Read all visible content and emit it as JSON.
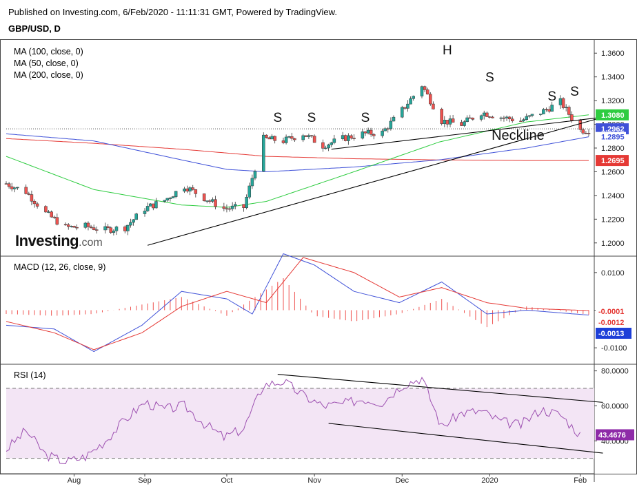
{
  "header": {
    "published": "Published on Investing.com, 6/Feb/2020 - 11:11:31 GMT, Powered by TradingView.",
    "symbol": "GBP/USD, D"
  },
  "watermark": {
    "brand": "Investing",
    "suffix": ".com"
  },
  "colors": {
    "up": "#26a69a",
    "down": "#ef5350",
    "ma100": "#3f51d8",
    "ma50": "#2ecc40",
    "ma200": "#e53935",
    "macd": "#3f51d8",
    "signal": "#e53935",
    "rsi": "#9c4fb0",
    "rsi_band": "#f3e5f5",
    "trendline": "#000000"
  },
  "chart_data": [
    {
      "type": "candlestick",
      "title": "GBP/USD, D",
      "x_axis": {
        "ticks": [
          "Aug",
          "Sep",
          "Oct",
          "Nov",
          "Dec",
          "2020",
          "Feb"
        ],
        "start": "2019-07-15",
        "end": "2020-02-06"
      },
      "y_axis": {
        "range": [
          1.19,
          1.37
        ],
        "ticks": [
          "1.2000",
          "1.2200",
          "1.2400",
          "1.2600",
          "1.2800",
          "1.3000",
          "1.3200",
          "1.3400",
          "1.3600"
        ]
      },
      "legend": [
        "MA (100, close, 0)",
        "MA (50, close, 0)",
        "MA (200, close, 0)"
      ],
      "price_badges": [
        {
          "value": "1.3080",
          "color": "#2ecc40",
          "y": 1.308
        },
        {
          "value": "1.2962",
          "color": "#3f51d8",
          "y": 1.2962
        },
        {
          "value": "1.2895",
          "color": "#3f51d8",
          "y": 1.2895,
          "style": "text"
        },
        {
          "value": "1.2695",
          "color": "#e53935",
          "y": 1.2695
        }
      ],
      "close_series": {
        "dates": [
          "2019-07-15",
          "2019-07-22",
          "2019-07-29",
          "2019-08-05",
          "2019-08-12",
          "2019-08-19",
          "2019-08-26",
          "2019-09-02",
          "2019-09-09",
          "2019-09-16",
          "2019-09-23",
          "2019-09-30",
          "2019-10-07",
          "2019-10-14",
          "2019-10-21",
          "2019-10-28",
          "2019-11-04",
          "2019-11-11",
          "2019-11-18",
          "2019-11-25",
          "2019-12-02",
          "2019-12-09",
          "2019-12-16",
          "2019-12-23",
          "2019-12-30",
          "2020-01-06",
          "2020-01-13",
          "2020-01-20",
          "2020-01-27",
          "2020-02-03"
        ],
        "values": [
          1.25,
          1.243,
          1.225,
          1.213,
          1.214,
          1.211,
          1.213,
          1.229,
          1.236,
          1.248,
          1.238,
          1.229,
          1.23,
          1.288,
          1.286,
          1.292,
          1.282,
          1.288,
          1.292,
          1.293,
          1.312,
          1.333,
          1.303,
          1.3,
          1.31,
          1.306,
          1.303,
          1.31,
          1.319,
          1.295
        ]
      },
      "ma100": {
        "dates": [
          "2019-07-15",
          "2019-08-15",
          "2019-09-15",
          "2019-10-01",
          "2019-10-15",
          "2019-11-15",
          "2019-12-15",
          "2020-01-15",
          "2020-02-06"
        ],
        "values": [
          1.292,
          1.286,
          1.27,
          1.262,
          1.26,
          1.264,
          1.27,
          1.28,
          1.2895
        ]
      },
      "ma50": {
        "dates": [
          "2019-07-15",
          "2019-08-15",
          "2019-09-15",
          "2019-10-01",
          "2019-10-15",
          "2019-11-15",
          "2019-12-15",
          "2020-01-15",
          "2020-02-06"
        ],
        "values": [
          1.273,
          1.245,
          1.232,
          1.23,
          1.235,
          1.26,
          1.285,
          1.302,
          1.308
        ]
      },
      "ma200": {
        "dates": [
          "2019-07-15",
          "2019-08-15",
          "2019-09-15",
          "2019-10-15",
          "2019-11-15",
          "2019-12-15",
          "2020-01-15",
          "2020-02-06"
        ],
        "values": [
          1.288,
          1.284,
          1.279,
          1.273,
          1.271,
          1.27,
          1.2695,
          1.2695
        ]
      },
      "annotations": [
        {
          "text": "S",
          "date": "2019-10-19",
          "price": 1.302
        },
        {
          "text": "S",
          "date": "2019-10-31",
          "price": 1.302
        },
        {
          "text": "S",
          "date": "2019-11-19",
          "price": 1.302
        },
        {
          "text": "H",
          "date": "2019-12-18",
          "price": 1.359
        },
        {
          "text": "S",
          "date": "2020-01-02",
          "price": 1.336
        },
        {
          "text": "S",
          "date": "2020-01-24",
          "price": 1.32
        },
        {
          "text": "S",
          "date": "2020-02-01",
          "price": 1.324
        },
        {
          "text": "Neckline",
          "date": "2020-01-12",
          "price": 1.287
        }
      ],
      "trendlines": [
        {
          "from": [
            "2019-09-03",
            1.198
          ],
          "to": [
            "2020-02-11",
            1.306
          ]
        },
        {
          "from": [
            "2019-11-07",
            1.279
          ],
          "to": [
            "2020-02-11",
            1.306
          ]
        }
      ]
    },
    {
      "type": "line",
      "title": "MACD (12, 26, close, 9)",
      "y_axis": {
        "range": [
          -0.014,
          0.014
        ],
        "ticks": [
          "0.0100",
          "0.0000",
          "-0.0100"
        ]
      },
      "series": [
        {
          "name": "MACD",
          "color": "#3f51d8",
          "dates": [
            "2019-07-15",
            "2019-08-01",
            "2019-08-15",
            "2019-09-01",
            "2019-09-15",
            "2019-10-01",
            "2019-10-10",
            "2019-10-21",
            "2019-11-01",
            "2019-11-15",
            "2019-12-01",
            "2019-12-16",
            "2020-01-01",
            "2020-01-15",
            "2020-02-06"
          ],
          "values": [
            -0.004,
            -0.005,
            -0.011,
            -0.004,
            0.005,
            0.003,
            -0.001,
            0.015,
            0.012,
            0.005,
            0.002,
            0.0075,
            -0.001,
            0.0,
            -0.0013
          ]
        },
        {
          "name": "Signal",
          "color": "#e53935",
          "dates": [
            "2019-07-15",
            "2019-08-01",
            "2019-08-15",
            "2019-09-01",
            "2019-09-15",
            "2019-10-01",
            "2019-10-15",
            "2019-10-28",
            "2019-11-15",
            "2019-12-01",
            "2019-12-16",
            "2020-01-01",
            "2020-01-15",
            "2020-02-06"
          ],
          "values": [
            -0.003,
            -0.006,
            -0.0105,
            -0.006,
            0.001,
            0.005,
            0.002,
            0.014,
            0.01,
            0.0035,
            0.006,
            0.002,
            0.0005,
            -0.0001
          ]
        }
      ],
      "histogram": {
        "dates": [
          "2019-07-15",
          "2019-08-01",
          "2019-08-15",
          "2019-09-01",
          "2019-09-15",
          "2019-10-01",
          "2019-10-21",
          "2019-11-01",
          "2019-11-15",
          "2019-12-01",
          "2019-12-16",
          "2020-01-01",
          "2020-01-15",
          "2020-02-06"
        ],
        "values": [
          -0.001,
          -0.0015,
          -0.001,
          0.0015,
          0.0035,
          -0.0015,
          0.0085,
          -0.0015,
          -0.003,
          -0.001,
          0.003,
          -0.0045,
          0.001,
          -0.0012
        ]
      },
      "value_badges": [
        {
          "value": "-0.0001",
          "color": "#e53935",
          "y": -0.0001
        },
        {
          "value": "-0.0012",
          "color": "#e53935",
          "y": -0.0012
        },
        {
          "value": "-0.0013",
          "color": "#1d3fd8",
          "y": -0.0013
        }
      ]
    },
    {
      "type": "line",
      "title": "RSI (14)",
      "y_axis": {
        "range": [
          22,
          83
        ],
        "ticks": [
          "80.0000",
          "60.0000",
          "40.0000"
        ]
      },
      "bands": [
        30,
        70
      ],
      "series": [
        {
          "name": "RSI",
          "color": "#9c4fb0",
          "dates": [
            "2019-07-15",
            "2019-07-22",
            "2019-07-29",
            "2019-08-05",
            "2019-08-12",
            "2019-08-19",
            "2019-08-26",
            "2019-09-02",
            "2019-09-09",
            "2019-09-16",
            "2019-09-23",
            "2019-09-30",
            "2019-10-07",
            "2019-10-14",
            "2019-10-21",
            "2019-10-28",
            "2019-11-04",
            "2019-11-11",
            "2019-11-18",
            "2019-11-25",
            "2019-12-02",
            "2019-12-09",
            "2019-12-16",
            "2019-12-23",
            "2019-12-30",
            "2020-01-06",
            "2020-01-13",
            "2020-01-20",
            "2020-01-27",
            "2020-02-03"
          ],
          "values": [
            35,
            46,
            32,
            28,
            31,
            40,
            52,
            62,
            58,
            60,
            50,
            42,
            47,
            72,
            74,
            66,
            60,
            61,
            64,
            62,
            72,
            76,
            48,
            56,
            57,
            51,
            49,
            58,
            55,
            43.4676
          ]
        }
      ],
      "value_badges": [
        {
          "value": "43.4676",
          "color": "#8e2ba8",
          "y": 43.4676
        }
      ],
      "trendlines": [
        {
          "from": [
            "2019-10-19",
            78
          ],
          "to": [
            "2020-02-11",
            62
          ]
        },
        {
          "from": [
            "2019-11-06",
            50
          ],
          "to": [
            "2020-02-11",
            33
          ]
        }
      ]
    }
  ]
}
